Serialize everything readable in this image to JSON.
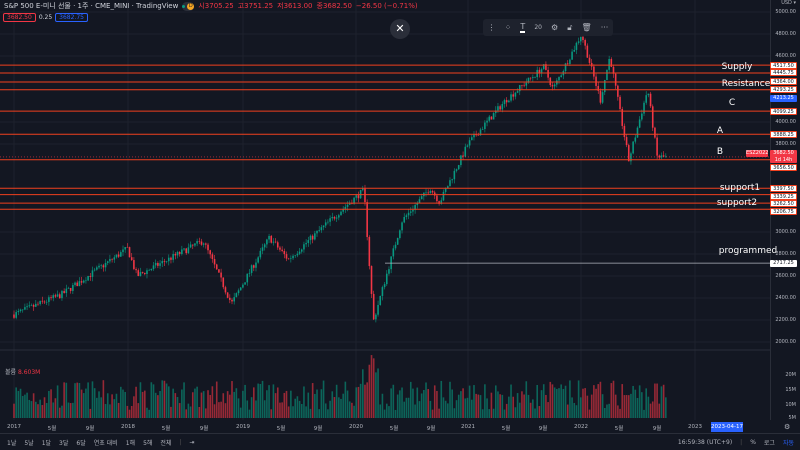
{
  "header": {
    "symbol": "S&P 500 E-미니 선물 · 1주 · CME_MINI · TradingView",
    "badge": "D",
    "open": "시3705.25",
    "high": "고3751.25",
    "low": "저3613.00",
    "close": "종3682.50",
    "change": "−26.50 (−0.71%)",
    "bid": "3682.50",
    "spread": "0.25",
    "ask": "3682.75"
  },
  "toolbar": {
    "items": [
      "drag-handle",
      "template-icon",
      "text-icon",
      "20",
      "settings-icon",
      "lock-icon",
      "trash-icon",
      "more-icon"
    ],
    "font_size": "20"
  },
  "close_label": "✕",
  "axis": {
    "currency": "USD ▾",
    "ticks": [
      "5000.00",
      "4800.00",
      "4600.00",
      "4000.00",
      "3800.00",
      "3000.00",
      "2800.00",
      "2600.00",
      "2400.00",
      "2200.00",
      "2000.00"
    ],
    "tick_values": [
      5000,
      4800,
      4600,
      4000,
      3800,
      3000,
      2800,
      2600,
      2400,
      2200,
      2000
    ],
    "volume_ticks": [
      "20M",
      "15M",
      "10M",
      "5M"
    ]
  },
  "levels": [
    {
      "price": "4517.50",
      "v": 4517.5
    },
    {
      "price": "4445.75",
      "v": 4445.75
    },
    {
      "price": "4364.00",
      "v": 4364
    },
    {
      "price": "4293.25",
      "v": 4293.25
    },
    {
      "price": "4099.25",
      "v": 4099.25
    },
    {
      "price": "3888.25",
      "v": 3888.25
    },
    {
      "price": "3656.50",
      "v": 3656.5
    },
    {
      "price": "3397.50",
      "v": 3397.5
    },
    {
      "price": "3339.25",
      "v": 3339.25
    },
    {
      "price": "3262.50",
      "v": 3262.5
    },
    {
      "price": "3206.75",
      "v": 3206.75
    }
  ],
  "programmed_level": {
    "price": "2717.25",
    "v": 2717.25
  },
  "current": {
    "price": "3682.50",
    "v": 3682.5,
    "countdown": "1d 14h",
    "contract": "ESZ2022"
  },
  "blue_tag": {
    "price": "4213.25",
    "v": 4213.25
  },
  "labels": {
    "supply": "Supply",
    "resistance": "Resistance",
    "c": "C",
    "a": "A",
    "b": "B",
    "support1": "support1",
    "support2": "support2",
    "programmed": "programmed"
  },
  "volume": {
    "label": "볼륨",
    "value": "8.603M"
  },
  "xaxis": [
    "2017",
    "5월",
    "9월",
    "2018",
    "5월",
    "9월",
    "2019",
    "5월",
    "9월",
    "2020",
    "5월",
    "9월",
    "2021",
    "5월",
    "9월",
    "2022",
    "5월",
    "9월",
    "2023"
  ],
  "crosshair_date": "2023-04-17",
  "bottom": {
    "ranges": [
      "1날",
      "5날",
      "1달",
      "3달",
      "6달",
      "연초 대비",
      "1해",
      "5해",
      "전체"
    ],
    "time": "16:59:38 (UTC+9)",
    "percent": "%",
    "log": "로그",
    "auto": "자동"
  },
  "chart_data": {
    "type": "candlestick",
    "interval": "1W",
    "price_path": [
      [
        "2017-01",
        2250
      ],
      [
        "2017-06",
        2430
      ],
      [
        "2018-01",
        2850
      ],
      [
        "2018-02",
        2600
      ],
      [
        "2018-09",
        2920
      ],
      [
        "2018-12",
        2350
      ],
      [
        "2019-04",
        2950
      ],
      [
        "2019-06",
        2750
      ],
      [
        "2019-12",
        3230
      ],
      [
        "2020-02",
        3380
      ],
      [
        "2020-03",
        2190
      ],
      [
        "2020-06",
        3100
      ],
      [
        "2020-09",
        3400
      ],
      [
        "2020-10",
        3270
      ],
      [
        "2021-01",
        3800
      ],
      [
        "2021-05",
        4200
      ],
      [
        "2021-09",
        4500
      ],
      [
        "2021-10",
        4300
      ],
      [
        "2022-01",
        4800
      ],
      [
        "2022-03",
        4200
      ],
      [
        "2022-04",
        4600
      ],
      [
        "2022-06",
        3650
      ],
      [
        "2022-08",
        4300
      ],
      [
        "2022-09",
        3682
      ]
    ],
    "colors": {
      "up": "#089981",
      "down": "#f23645",
      "level": "#f0401e"
    }
  }
}
